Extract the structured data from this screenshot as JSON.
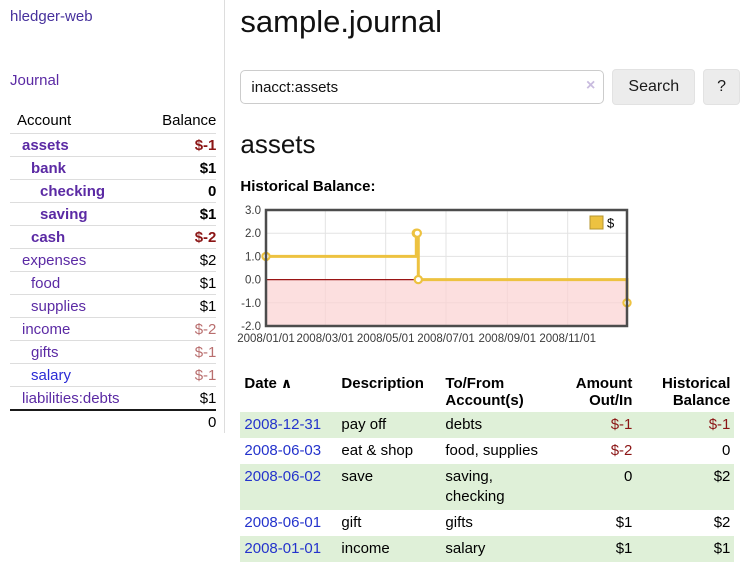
{
  "sidebar": {
    "app_title": "hledger-web",
    "journal_link": "Journal",
    "accounts": {
      "col_account": "Account",
      "col_balance": "Balance",
      "rows": [
        {
          "account": "assets",
          "balance": "$-1"
        },
        {
          "account": "bank",
          "balance": "$1"
        },
        {
          "account": "checking",
          "balance": "0"
        },
        {
          "account": "saving",
          "balance": "$1"
        },
        {
          "account": "cash",
          "balance": "$-2"
        },
        {
          "account": "expenses",
          "balance": "$2"
        },
        {
          "account": "food",
          "balance": "$1"
        },
        {
          "account": "supplies",
          "balance": "$1"
        },
        {
          "account": "income",
          "balance": "$-2"
        },
        {
          "account": "gifts",
          "balance": "$-1"
        },
        {
          "account": "salary",
          "balance": "$-1"
        },
        {
          "account": "liabilities:debts",
          "balance": "$1"
        }
      ],
      "total": "0"
    }
  },
  "header": {
    "title": "sample.journal"
  },
  "search": {
    "value": "inacct:assets",
    "clear_icon": "×",
    "search_button": "Search",
    "help_button": "?"
  },
  "account_view": {
    "heading": "assets",
    "chart_title": "Historical Balance:"
  },
  "chart_data": {
    "type": "line",
    "title": "Historical Balance:",
    "x_start": "2008-01-01",
    "x_days": 365,
    "ylim": [
      -2,
      3
    ],
    "y_ticks": [
      "3.0",
      "2.0",
      "1.0",
      "0.0",
      "-1.0",
      "-2.0"
    ],
    "x_ticks": [
      {
        "label": "2008/01/01",
        "date": "2008-01-01"
      },
      {
        "label": "2008/03/01",
        "date": "2008-03-01"
      },
      {
        "label": "2008/05/01",
        "date": "2008-05-01"
      },
      {
        "label": "2008/07/01",
        "date": "2008-07-01"
      },
      {
        "label": "2008/09/01",
        "date": "2008-09-01"
      },
      {
        "label": "2008/11/01",
        "date": "2008-11-01"
      }
    ],
    "series": [
      {
        "name": "$",
        "color": "#EDC240",
        "step": true,
        "points": [
          {
            "date": "2008-01-01",
            "value": 1
          },
          {
            "date": "2008-06-01",
            "value": 2
          },
          {
            "date": "2008-06-02",
            "value": 2
          },
          {
            "date": "2008-06-03",
            "value": 0
          },
          {
            "date": "2008-12-31",
            "value": -1
          }
        ]
      }
    ],
    "zero_line_color": "#991414",
    "negative_region_color": "#fbd3d3",
    "grid": true,
    "legend_position": "top-right"
  },
  "register": {
    "headers": {
      "date": "Date",
      "sort_icon": "∧",
      "description": "Description",
      "accounts": "To/From Account(s)",
      "amount": "Amount Out/In",
      "balance": "Historical Balance"
    },
    "rows": [
      {
        "date": "2008-12-31",
        "description": "pay off",
        "accounts": "debts",
        "amount": "$-1",
        "balance": "$-1"
      },
      {
        "date": "2008-06-03",
        "description": "eat & shop",
        "accounts": "food, supplies",
        "amount": "$-2",
        "balance": "0"
      },
      {
        "date": "2008-06-02",
        "description": "save",
        "accounts": "saving, checking",
        "amount": "0",
        "balance": "$2"
      },
      {
        "date": "2008-06-01",
        "description": "gift",
        "accounts": "gifts",
        "amount": "$1",
        "balance": "$2"
      },
      {
        "date": "2008-01-01",
        "description": "income",
        "accounts": "salary",
        "amount": "$1",
        "balance": "$1"
      }
    ]
  }
}
